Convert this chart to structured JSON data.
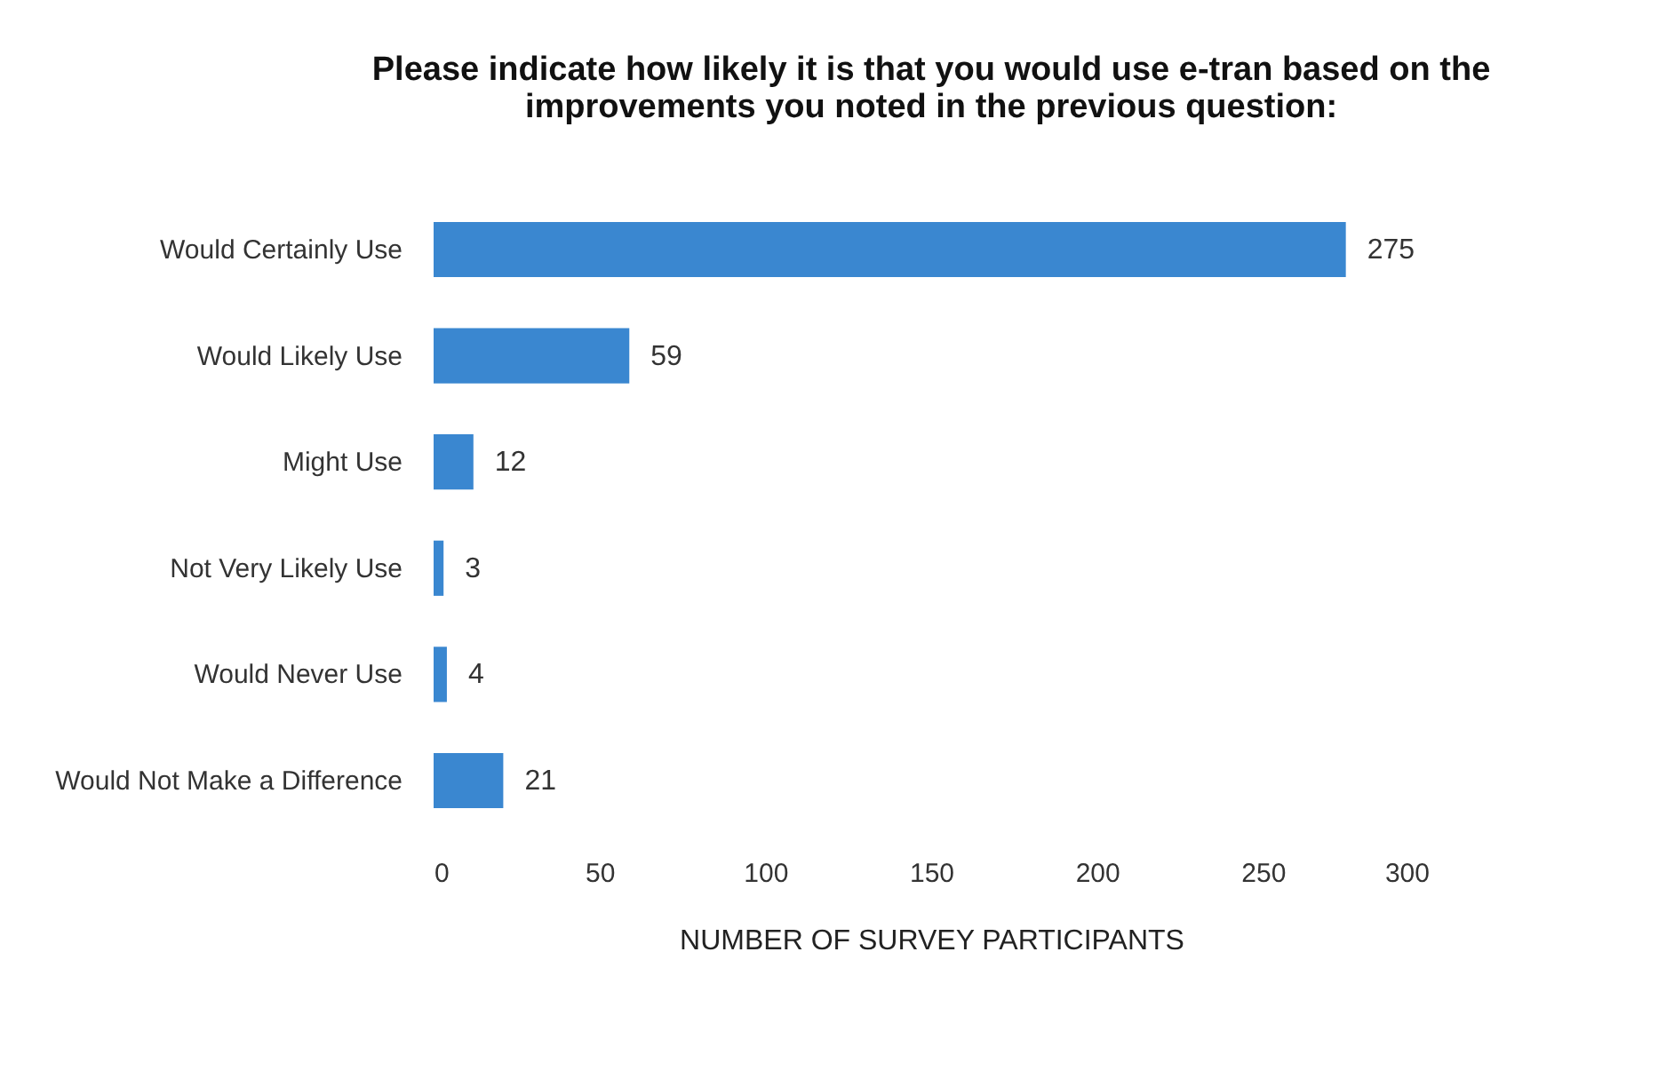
{
  "chart_data": {
    "type": "bar",
    "orientation": "horizontal",
    "title": [
      "Please indicate how likely it is that you would use e-tran based on the",
      "improvements you noted in the previous question:"
    ],
    "categories": [
      "Would Certainly Use",
      "Would Likely Use",
      "Might Use",
      "Not Very Likely Use",
      "Would Never Use",
      "Would Not Make a Difference"
    ],
    "values": [
      275,
      59,
      12,
      3,
      4,
      21
    ],
    "color": "#3a87d0",
    "xlabel": "NUMBER OF SURVEY PARTICIPANTS",
    "xlim": [
      0,
      300
    ],
    "xticks": [
      0,
      50,
      100,
      150,
      200,
      250,
      300
    ],
    "data_labels": true
  }
}
